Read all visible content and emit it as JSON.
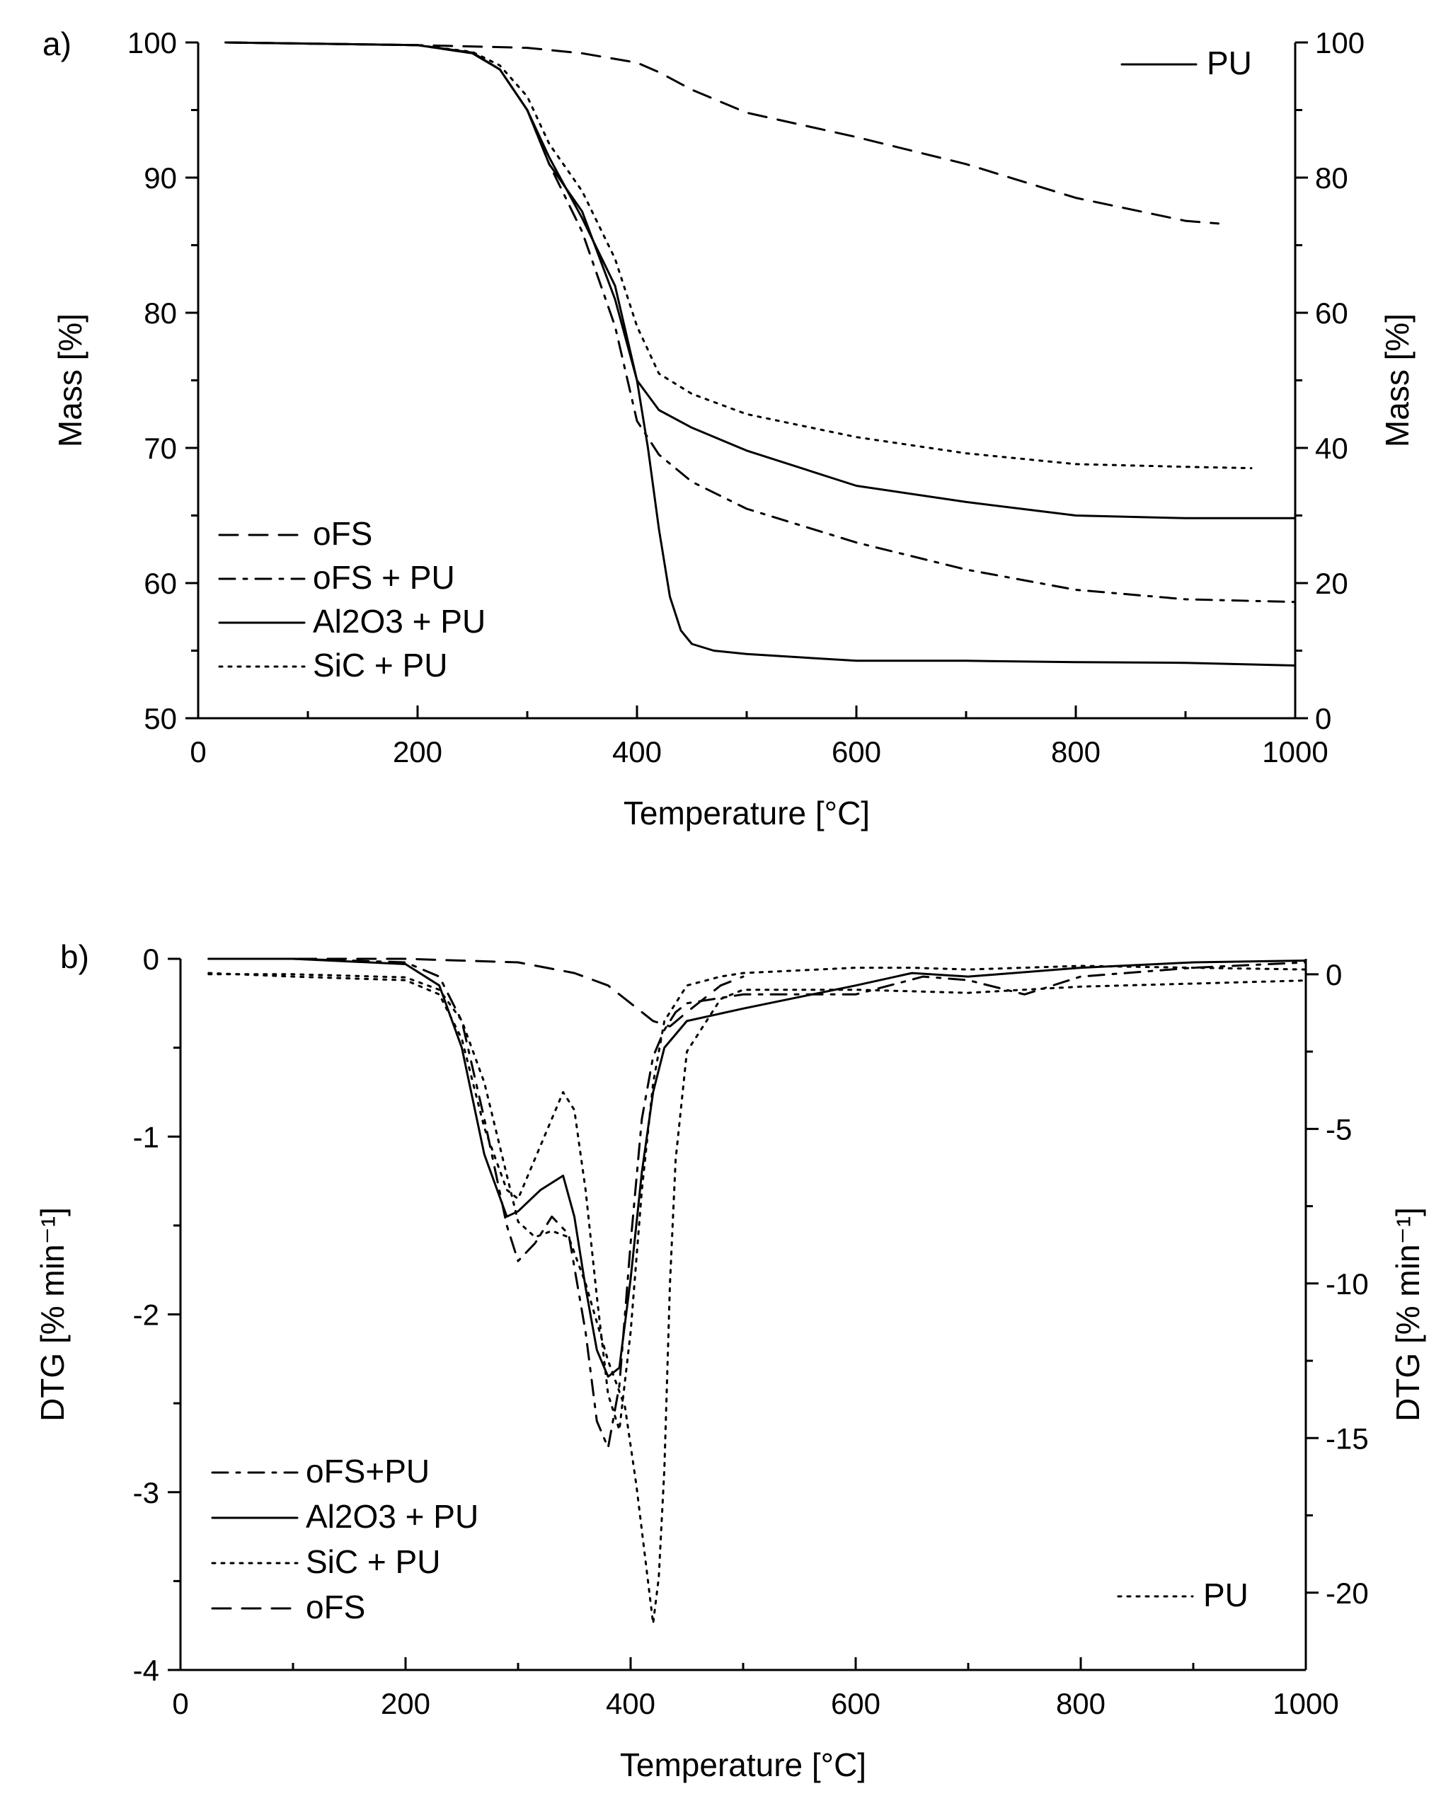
{
  "chart_data": [
    {
      "panel_label": "a)",
      "type": "line",
      "xlabel": "Temperature [°C]",
      "ylabel": "Mass [%]",
      "y2label": "Mass [%]",
      "xlim": [
        0,
        1000
      ],
      "ylim": [
        50,
        100
      ],
      "y2lim": [
        0,
        100
      ],
      "x_ticks": [
        0,
        200,
        400,
        600,
        800,
        1000
      ],
      "y_ticks": [
        50,
        60,
        70,
        80,
        90,
        100
      ],
      "y2_ticks": [
        0,
        20,
        40,
        60,
        80,
        100
      ],
      "legend_main": [
        "oFS",
        "oFS + PU",
        "Al2O3 + PU",
        "SiC + PU"
      ],
      "legend_secondary": [
        "PU"
      ],
      "series": [
        {
          "name": "oFS",
          "axis": "left",
          "dash": "dashed",
          "x": [
            25,
            200,
            300,
            350,
            400,
            420,
            450,
            500,
            600,
            700,
            800,
            900,
            930
          ],
          "y": [
            100,
            99.8,
            99.6,
            99.2,
            98.5,
            97.8,
            96.5,
            94.8,
            93,
            91,
            88.5,
            86.8,
            86.6
          ]
        },
        {
          "name": "oFS + PU",
          "axis": "left",
          "dash": "dashdot",
          "x": [
            25,
            200,
            250,
            275,
            300,
            320,
            350,
            380,
            400,
            420,
            450,
            500,
            600,
            700,
            800,
            900,
            1000
          ],
          "y": [
            100,
            99.8,
            99.2,
            98,
            95,
            91,
            86,
            79,
            72,
            69.5,
            67.5,
            65.5,
            63,
            61,
            59.5,
            58.8,
            58.6
          ]
        },
        {
          "name": "Al2O3 + PU",
          "axis": "left",
          "dash": "solid",
          "x": [
            25,
            200,
            250,
            275,
            300,
            320,
            350,
            380,
            400,
            420,
            450,
            500,
            600,
            700,
            800,
            900,
            1000
          ],
          "y": [
            100,
            99.8,
            99.2,
            98,
            95,
            91,
            87.5,
            81,
            75,
            72.8,
            71.5,
            69.8,
            67.2,
            66,
            65,
            64.8,
            64.8
          ]
        },
        {
          "name": "SiC + PU",
          "axis": "left",
          "dash": "dotted",
          "x": [
            25,
            200,
            250,
            275,
            300,
            320,
            350,
            380,
            400,
            420,
            450,
            500,
            600,
            700,
            800,
            900,
            960
          ],
          "y": [
            100,
            99.8,
            99.3,
            98.3,
            96,
            92.5,
            89,
            84,
            79,
            75.5,
            74,
            72.5,
            70.8,
            69.6,
            68.8,
            68.6,
            68.5
          ]
        },
        {
          "name": "PU",
          "axis": "right",
          "dash": "solid",
          "x": [
            25,
            200,
            250,
            275,
            300,
            320,
            350,
            380,
            400,
            410,
            420,
            430,
            440,
            450,
            470,
            500,
            600,
            700,
            800,
            900,
            1000
          ],
          "y": [
            100,
            99.6,
            98.5,
            96,
            90,
            83,
            74,
            64,
            50,
            40,
            28,
            18,
            13,
            11,
            10,
            9.5,
            8.5,
            8.5,
            8.3,
            8.2,
            7.8
          ]
        }
      ]
    },
    {
      "panel_label": "b)",
      "type": "line",
      "xlabel": "Temperature [°C]",
      "ylabel": "DTG [% min⁻¹]",
      "y2label": "DTG [% min⁻¹]",
      "xlim": [
        0,
        1000
      ],
      "ylim": [
        -4,
        0
      ],
      "y2lim": [
        -22.5,
        0.5
      ],
      "x_ticks": [
        0,
        200,
        400,
        600,
        800,
        1000
      ],
      "y_ticks": [
        -4,
        -3,
        -2,
        -1,
        0
      ],
      "y_tick_labels": [
        "-4",
        "-3",
        "-2",
        "-1",
        "0"
      ],
      "y2_ticks": [
        -20,
        -15,
        -10,
        -5,
        0
      ],
      "y2_tick_labels": [
        "-20",
        "-15",
        "-10",
        "-5",
        "0"
      ],
      "legend_main": [
        "oFS+PU",
        "Al2O3 + PU",
        "SiC + PU",
        "oFS"
      ],
      "legend_secondary": [
        "PU"
      ],
      "series": [
        {
          "name": "oFS+PU",
          "axis": "left",
          "dash": "dashdot",
          "x": [
            25,
            100,
            200,
            230,
            250,
            270,
            290,
            300,
            315,
            330,
            345,
            360,
            370,
            380,
            390,
            400,
            410,
            420,
            430,
            440,
            450,
            500,
            600,
            660,
            700,
            750,
            800,
            900,
            1000
          ],
          "y": [
            0,
            0,
            -0.02,
            -0.1,
            -0.35,
            -0.9,
            -1.5,
            -1.7,
            -1.6,
            -1.45,
            -1.55,
            -2.1,
            -2.6,
            -2.75,
            -2.4,
            -1.6,
            -0.9,
            -0.55,
            -0.4,
            -0.3,
            -0.25,
            -0.2,
            -0.2,
            -0.1,
            -0.12,
            -0.2,
            -0.1,
            -0.05,
            -0.02
          ]
        },
        {
          "name": "Al2O3 + PU",
          "axis": "left",
          "dash": "solid",
          "x": [
            25,
            100,
            200,
            230,
            250,
            270,
            290,
            300,
            320,
            340,
            350,
            360,
            370,
            380,
            390,
            400,
            410,
            420,
            430,
            450,
            500,
            600,
            650,
            700,
            800,
            900,
            1000
          ],
          "y": [
            0,
            0,
            -0.03,
            -0.15,
            -0.5,
            -1.1,
            -1.45,
            -1.42,
            -1.3,
            -1.22,
            -1.45,
            -1.85,
            -2.2,
            -2.35,
            -2.3,
            -1.8,
            -1.2,
            -0.75,
            -0.5,
            -0.35,
            -0.28,
            -0.15,
            -0.08,
            -0.1,
            -0.05,
            -0.02,
            -0.01
          ]
        },
        {
          "name": "SiC + PU",
          "axis": "left",
          "dash": "dotted",
          "x": [
            25,
            100,
            200,
            230,
            250,
            270,
            290,
            300,
            320,
            340,
            350,
            360,
            370,
            380,
            390,
            400,
            410,
            420,
            430,
            450,
            480,
            500,
            600,
            650,
            700,
            800,
            900,
            1000
          ],
          "y": [
            -0.08,
            -0.1,
            -0.12,
            -0.2,
            -0.45,
            -0.95,
            -1.3,
            -1.35,
            -1.05,
            -0.75,
            -0.85,
            -1.3,
            -1.9,
            -2.45,
            -2.65,
            -2.1,
            -1.3,
            -0.7,
            -0.35,
            -0.15,
            -0.1,
            -0.08,
            -0.05,
            -0.05,
            -0.06,
            -0.04,
            -0.05,
            -0.06
          ]
        },
        {
          "name": "oFS",
          "axis": "left",
          "dash": "dashed",
          "x": [
            25,
            100,
            200,
            300,
            350,
            380,
            400,
            420,
            435,
            450,
            480,
            500
          ],
          "y": [
            0,
            0,
            0,
            -0.02,
            -0.08,
            -0.15,
            -0.25,
            -0.35,
            -0.38,
            -0.3,
            -0.15,
            -0.1
          ]
        },
        {
          "name": "PU",
          "axis": "right",
          "dash": "dotted",
          "x": [
            25,
            100,
            200,
            230,
            250,
            270,
            290,
            300,
            315,
            330,
            345,
            360,
            380,
            395,
            405,
            415,
            420,
            425,
            430,
            435,
            440,
            450,
            480,
            500,
            600,
            700,
            800,
            900,
            1000
          ],
          "y": [
            0,
            0,
            -0.1,
            -0.5,
            -1.5,
            -3.5,
            -6.5,
            -8,
            -8.5,
            -8.3,
            -8.5,
            -10,
            -12.5,
            -14,
            -16.5,
            -19.5,
            -21,
            -19.5,
            -16,
            -10,
            -6,
            -2.5,
            -0.8,
            -0.5,
            -0.5,
            -0.6,
            -0.4,
            -0.3,
            -0.2
          ]
        }
      ]
    }
  ]
}
